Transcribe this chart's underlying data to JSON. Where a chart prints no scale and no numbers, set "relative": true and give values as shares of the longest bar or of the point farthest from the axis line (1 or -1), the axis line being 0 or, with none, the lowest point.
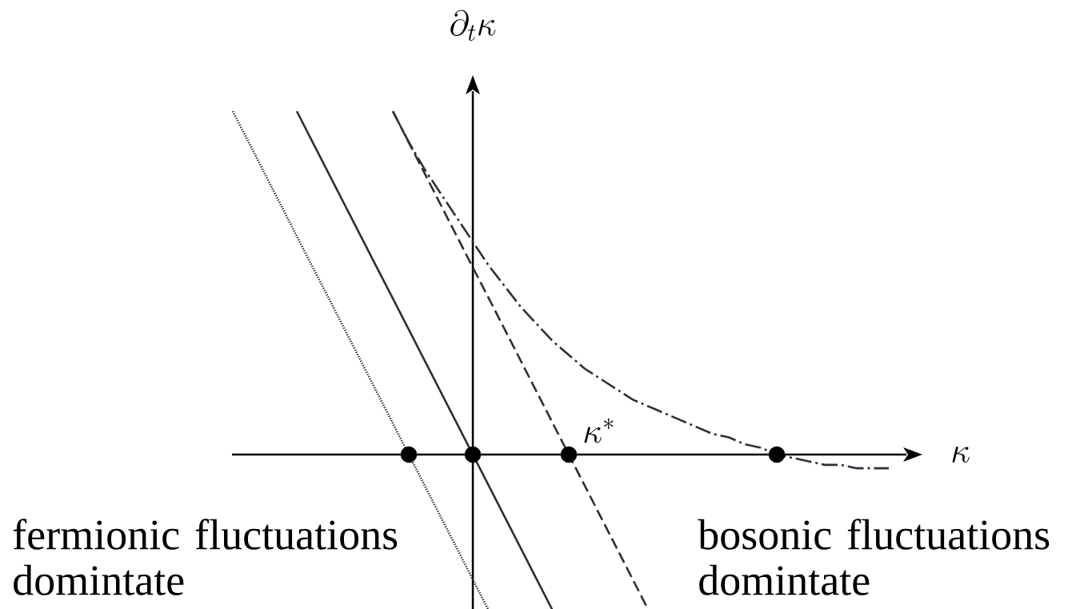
{
  "chart_data": {
    "type": "line",
    "relative": true,
    "categories": [
      null,
      null,
      null,
      null,
      null,
      null,
      null,
      null,
      null,
      null,
      null,
      null,
      null,
      null,
      null,
      null,
      null,
      null,
      null,
      null,
      null,
      null,
      null,
      null,
      null,
      null,
      null,
      null,
      null,
      null,
      null,
      null,
      null,
      null,
      null,
      null,
      null,
      null,
      null,
      null,
      null,
      null
    ],
    "series": [
      {
        "color": "#2f2f3a",
        "line_style": "dotted",
        "marker": "none",
        "values": [
          1,
          0.909,
          0.818,
          0.727,
          0.636,
          0.545,
          0.455,
          0.364,
          0.273,
          0.182,
          0.091,
          0,
          -0.091,
          -0.182,
          -0.273,
          -0.364,
          -0.455,
          null,
          null,
          null,
          null,
          null,
          null,
          null,
          null,
          null,
          null,
          null,
          null,
          null,
          null,
          null,
          null,
          null,
          null,
          null,
          null,
          null,
          null,
          null,
          null,
          null
        ]
      },
      {
        "color": "#2f2f3a",
        "line_style": "solid",
        "marker": "none",
        "values": [
          null,
          null,
          null,
          null,
          1,
          0.909,
          0.818,
          0.727,
          0.636,
          0.545,
          0.455,
          0.364,
          0.273,
          0.182,
          0.091,
          0,
          -0.091,
          -0.182,
          -0.273,
          -0.364,
          -0.455,
          null,
          null,
          null,
          null,
          null,
          null,
          null,
          null,
          null,
          null,
          null,
          null,
          null,
          null,
          null,
          null,
          null,
          null,
          null,
          null,
          null
        ]
      },
      {
        "color": "#2f2f3a",
        "line_style": "dashed",
        "marker": "none",
        "values": [
          null,
          null,
          null,
          null,
          null,
          null,
          null,
          null,
          null,
          null,
          1,
          0.909,
          0.818,
          0.727,
          0.636,
          0.545,
          0.455,
          0.364,
          0.273,
          0.182,
          0.091,
          0,
          -0.091,
          -0.182,
          -0.273,
          -0.364,
          -0.455,
          null,
          null,
          null,
          null,
          null,
          null,
          null,
          null,
          null,
          null,
          null,
          null,
          null,
          null,
          null
        ]
      },
      {
        "color": "#2f2f3a",
        "line_style": "dashdot",
        "marker": "none",
        "values": [
          null,
          null,
          null,
          null,
          null,
          null,
          null,
          null,
          null,
          null,
          1,
          0.91,
          0.83,
          0.76,
          0.69,
          0.62,
          0.55,
          0.49,
          0.43,
          0.38,
          0.33,
          0.29,
          0.25,
          0.22,
          0.19,
          0.16,
          0.14,
          0.12,
          0.1,
          0.08,
          0.06,
          0.05,
          0.03,
          0.02,
          0,
          -0.01,
          -0.02,
          -0.03,
          -0.03,
          -0.04,
          -0.04,
          -0.04
        ]
      },
      {
        "color": "#000000",
        "marker": "circle",
        "values": [
          null,
          null,
          null,
          null,
          null,
          null,
          null,
          null,
          null,
          null,
          null,
          0,
          null,
          null,
          null,
          0,
          null,
          null,
          null,
          null,
          null,
          0,
          null,
          null,
          null,
          null,
          null,
          null,
          null,
          null,
          null,
          null,
          null,
          null,
          0,
          null,
          null,
          null,
          null,
          null,
          null,
          null
        ]
      }
    ],
    "annotations": [
      "\\partial_t\\kappa",
      "\\kappa",
      "\\kappa^{*}",
      "fermionic fluctuations domintate",
      "bosonic fluctuations domintate"
    ]
  }
}
